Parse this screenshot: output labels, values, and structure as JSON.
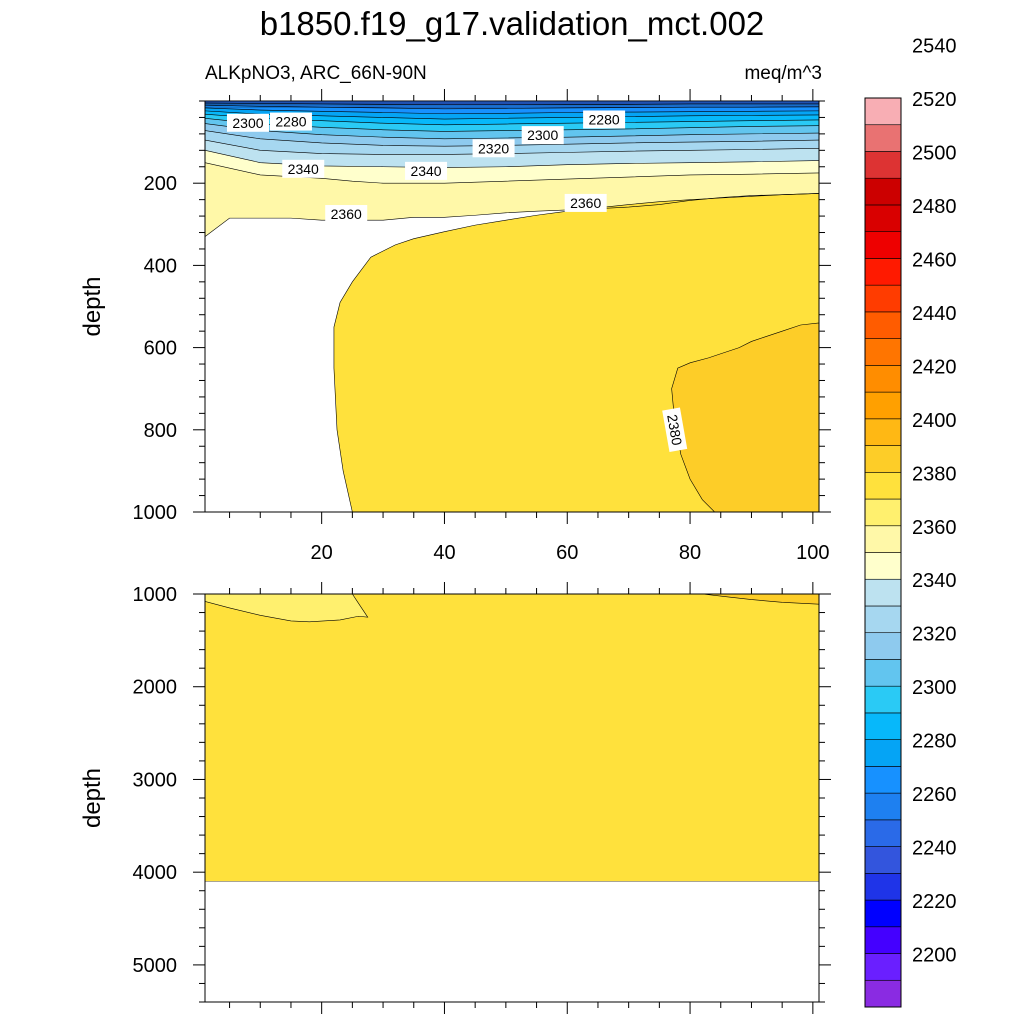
{
  "title": "b1850.f19_g17.validation_mct.002",
  "subtitle_left": "ALKpNO3, ARC_66N-90N",
  "subtitle_right": "meq/m^3",
  "chart_data": {
    "type": "contour",
    "variable": "ALKpNO3",
    "region": "ARC_66N-90N",
    "units": "meq/m^3",
    "xlabel": "",
    "ylabel": "depth",
    "grid": false,
    "panels": [
      {
        "name": "upper",
        "ylabel": "depth",
        "xlim": [
          1,
          101
        ],
        "ylim": [
          0,
          1000
        ],
        "y_reversed": true,
        "xticks": [
          20,
          40,
          60,
          80,
          100
        ],
        "yticks": [
          200,
          400,
          600,
          800,
          1000
        ],
        "bands": [
          {
            "level": 2360,
            "x": [
              1,
              5,
              10,
              15,
              20,
              25,
              30,
              35,
              40,
              45,
              50,
              55,
              60,
              65,
              70,
              75,
              80,
              85,
              90,
              95,
              101
            ],
            "y": [
              330,
              285,
              285,
              285,
              290,
              290,
              290,
              283,
              283,
              278,
              272,
              268,
              265,
              262,
              258,
              252,
              242,
              235,
              230,
              228,
              225
            ]
          },
          {
            "level": 2350,
            "x": [
              1,
              10,
              20,
              25,
              30,
              40,
              50,
              60,
              70,
              80,
              90,
              101
            ],
            "y": [
              150,
              180,
              188,
              195,
              200,
              200,
              195,
              190,
              185,
              180,
              178,
              175
            ]
          },
          {
            "level": 2340,
            "x": [
              1,
              10,
              20,
              30,
              40,
              50,
              60,
              70,
              80,
              90,
              101
            ],
            "y": [
              120,
              150,
              158,
              160,
              162,
              160,
              155,
              152,
              150,
              148,
              145
            ]
          },
          {
            "level": 2330,
            "x": [
              1,
              10,
              20,
              30,
              40,
              50,
              60,
              70,
              80,
              90,
              101
            ],
            "y": [
              95,
              120,
              128,
              130,
              130,
              128,
              125,
              122,
              120,
              118,
              115
            ]
          },
          {
            "level": 2320,
            "x": [
              1,
              10,
              20,
              30,
              40,
              50,
              60,
              70,
              80,
              90,
              101
            ],
            "y": [
              72,
              92,
              102,
              108,
              110,
              108,
              105,
              102,
              100,
              98,
              95
            ]
          },
          {
            "level": 2310,
            "x": [
              1,
              10,
              20,
              30,
              40,
              50,
              60,
              70,
              80,
              90,
              101
            ],
            "y": [
              55,
              72,
              82,
              88,
              92,
              90,
              88,
              85,
              82,
              80,
              78
            ]
          },
          {
            "level": 2300,
            "x": [
              1,
              10,
              20,
              30,
              40,
              50,
              60,
              70,
              80,
              90,
              101
            ],
            "y": [
              42,
              56,
              64,
              70,
              74,
              72,
              70,
              68,
              65,
              62,
              60
            ]
          },
          {
            "level": 2290,
            "x": [
              1,
              10,
              20,
              30,
              40,
              50,
              60,
              70,
              80,
              90,
              101
            ],
            "y": [
              32,
              42,
              48,
              54,
              58,
              56,
              54,
              52,
              50,
              48,
              46
            ]
          },
          {
            "level": 2280,
            "x": [
              1,
              10,
              20,
              30,
              40,
              50,
              60,
              70,
              80,
              90,
              101
            ],
            "y": [
              24,
              32,
              36,
              40,
              44,
              42,
              40,
              38,
              36,
              35,
              34
            ]
          },
          {
            "level": 2270,
            "x": [
              1,
              10,
              20,
              30,
              40,
              50,
              60,
              70,
              80,
              90,
              101
            ],
            "y": [
              17,
              22,
              25,
              28,
              31,
              30,
              28,
              27,
              26,
              25,
              24
            ]
          },
          {
            "level": 2260,
            "x": [
              1,
              10,
              20,
              30,
              40,
              50,
              60,
              70,
              80,
              90,
              101
            ],
            "y": [
              10,
              13,
              15,
              17,
              19,
              18,
              17,
              16,
              15,
              15,
              14
            ]
          },
          {
            "level": 2250,
            "x": [
              1,
              10,
              20,
              30,
              40,
              50,
              60,
              70,
              80,
              90,
              101
            ],
            "y": [
              5,
              6,
              7,
              8,
              9,
              9,
              8,
              8,
              7,
              7,
              7
            ]
          }
        ],
        "regions": [
          {
            "level": 2370,
            "polygon": [
              [
                101,
                225
              ],
              [
                95,
                228
              ],
              [
                90,
                232
              ],
              [
                85,
                236
              ],
              [
                80,
                240
              ],
              [
                75,
                245
              ],
              [
                70,
                252
              ],
              [
                65,
                260
              ],
              [
                60,
                268
              ],
              [
                55,
                278
              ],
              [
                50,
                290
              ],
              [
                45,
                302
              ],
              [
                40,
                318
              ],
              [
                35,
                335
              ],
              [
                32,
                350
              ],
              [
                28,
                380
              ],
              [
                25,
                440
              ],
              [
                23,
                490
              ],
              [
                22,
                550
              ],
              [
                22,
                650
              ],
              [
                22.5,
                800
              ],
              [
                23.5,
                900
              ],
              [
                25,
                1000
              ],
              [
                101,
                1000
              ]
            ]
          },
          {
            "level": 2380,
            "polygon": [
              [
                101,
                540
              ],
              [
                98,
                545
              ],
              [
                95,
                560
              ],
              [
                92,
                575
              ],
              [
                90,
                585
              ],
              [
                88,
                600
              ],
              [
                85,
                615
              ],
              [
                83,
                625
              ],
              [
                80,
                637
              ],
              [
                78,
                650
              ],
              [
                77,
                700
              ],
              [
                77.5,
                780
              ],
              [
                78.5,
                860
              ],
              [
                80,
                920
              ],
              [
                82,
                970
              ],
              [
                84,
                1000
              ],
              [
                101,
                1000
              ]
            ]
          }
        ],
        "contour_labels": [
          {
            "text": "2300",
            "x": 8,
            "y": 53
          },
          {
            "text": "2280",
            "x": 15,
            "y": 50
          },
          {
            "text": "2280",
            "x": 66,
            "y": 45
          },
          {
            "text": "2300",
            "x": 56,
            "y": 83
          },
          {
            "text": "2320",
            "x": 48,
            "y": 115
          },
          {
            "text": "2340",
            "x": 17,
            "y": 165
          },
          {
            "text": "2340",
            "x": 37,
            "y": 170
          },
          {
            "text": "2360",
            "x": 24,
            "y": 275
          },
          {
            "text": "2360",
            "x": 63,
            "y": 248
          },
          {
            "text": "2380",
            "x": 77.5,
            "y": 800
          }
        ]
      },
      {
        "name": "lower",
        "ylabel": "depth",
        "xlim": [
          1,
          101
        ],
        "ylim": [
          1000,
          5400
        ],
        "y_reversed": true,
        "yticks": [
          1000,
          2000,
          3000,
          4000,
          5000
        ],
        "data_bottom": 4100,
        "regions": [
          {
            "level": 2370,
            "polygon": [
              [
                1,
                1000
              ],
              [
                1,
                4100
              ],
              [
                101,
                4100
              ],
              [
                101,
                1000
              ]
            ]
          },
          {
            "level": 2360,
            "polygon": [
              [
                1,
                1000
              ],
              [
                1,
                1080
              ],
              [
                5,
                1150
              ],
              [
                10,
                1230
              ],
              [
                15,
                1290
              ],
              [
                18,
                1300
              ],
              [
                23,
                1280
              ],
              [
                26,
                1240
              ],
              [
                27.5,
                1250
              ],
              [
                26,
                1100
              ],
              [
                25,
                1000
              ]
            ]
          },
          {
            "level": 2380,
            "polygon": [
              [
                82,
                1000
              ],
              [
                86,
                1030
              ],
              [
                90,
                1060
              ],
              [
                95,
                1090
              ],
              [
                101,
                1110
              ],
              [
                101,
                1000
              ]
            ]
          }
        ]
      }
    ],
    "colorbar": {
      "label_values": [
        2200,
        2220,
        2240,
        2260,
        2280,
        2300,
        2320,
        2340,
        2360,
        2380,
        2400,
        2420,
        2440,
        2460,
        2480,
        2500,
        2520,
        2540
      ],
      "colors": [
        "#8a2be2",
        "#6a1fff",
        "#4400ff",
        "#0000ff",
        "#1f34e8",
        "#3355dd",
        "#2a6ae8",
        "#1e80f0",
        "#1791ff",
        "#05a4f5",
        "#07b8fa",
        "#2acaf5",
        "#62c5ef",
        "#8ecaee",
        "#a6d7f0",
        "#bde2f0",
        "#ffffcc",
        "#fff8a8",
        "#fff06e",
        "#ffe13c",
        "#fdcd28",
        "#ffb814",
        "#ffa000",
        "#ff8d00",
        "#ff7500",
        "#ff5c00",
        "#ff3c00",
        "#ff1a00",
        "#ee0000",
        "#d90000",
        "#cc0000",
        "#dd3333",
        "#e97272",
        "#f8aeb4"
      ]
    }
  }
}
